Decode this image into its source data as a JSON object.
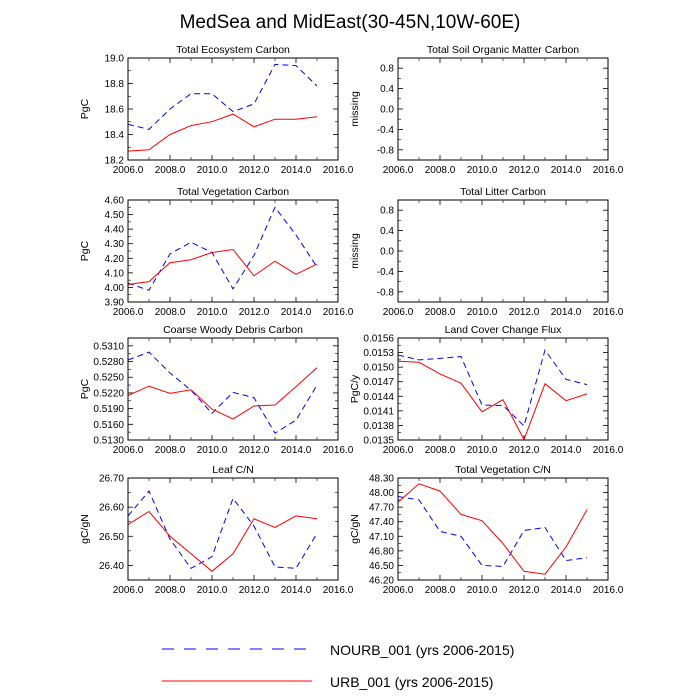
{
  "figure": {
    "title": "MedSea and MidEast(30-45N,10W-60E)"
  },
  "legend": {
    "entries": [
      {
        "label": "NOURB_001 (yrs 2006-2015)",
        "color": "#0000ff",
        "style": "dashed"
      },
      {
        "label": "URB_001 (yrs 2006-2015)",
        "color": "#ff0000",
        "style": "solid"
      }
    ]
  },
  "chart_data": [
    {
      "type": "line",
      "title": "Total Ecosystem Carbon",
      "ylabel": "PgC",
      "xlim": [
        2006,
        2016
      ],
      "ylim": [
        18.2,
        19.0
      ],
      "xticks": [
        "2006.0",
        "2008.0",
        "2010.0",
        "2012.0",
        "2014.0",
        "2016.0"
      ],
      "yticks": [
        "18.2",
        "18.4",
        "18.6",
        "18.8",
        "19.0"
      ],
      "x": [
        2006,
        2007,
        2008,
        2009,
        2010,
        2011,
        2012,
        2013,
        2014,
        2015
      ],
      "series": [
        {
          "name": "NOURB_001 (yrs 2006-2015)",
          "values": [
            18.48,
            18.44,
            18.6,
            18.72,
            18.72,
            18.58,
            18.64,
            18.95,
            18.94,
            18.78
          ]
        },
        {
          "name": "URB_001 (yrs 2006-2015)",
          "values": [
            18.27,
            18.28,
            18.4,
            18.47,
            18.5,
            18.56,
            18.46,
            18.52,
            18.52,
            18.54
          ]
        }
      ]
    },
    {
      "type": "line",
      "title": "Total Soil Organic Matter Carbon",
      "ylabel": "missing",
      "xlim": [
        2006,
        2016
      ],
      "ylim": [
        -1.0,
        1.0
      ],
      "xticks": [
        "2006.0",
        "2008.0",
        "2010.0",
        "2012.0",
        "2014.0",
        "2016.0"
      ],
      "yticks": [
        "-0.8",
        "-0.4",
        "0.0",
        "0.4",
        "0.8"
      ],
      "x": [],
      "series": []
    },
    {
      "type": "line",
      "title": "Total Vegetation Carbon",
      "ylabel": "PgC",
      "xlim": [
        2006,
        2016
      ],
      "ylim": [
        3.9,
        4.6
      ],
      "xticks": [
        "2006.0",
        "2008.0",
        "2010.0",
        "2012.0",
        "2014.0",
        "2016.0"
      ],
      "yticks": [
        "3.90",
        "4.00",
        "4.10",
        "4.20",
        "4.30",
        "4.40",
        "4.50",
        "4.60"
      ],
      "x": [
        2006,
        2007,
        2008,
        2009,
        2010,
        2011,
        2012,
        2013,
        2014,
        2015
      ],
      "series": [
        {
          "name": "NOURB_001 (yrs 2006-2015)",
          "values": [
            4.03,
            3.98,
            4.23,
            4.31,
            4.24,
            3.99,
            4.22,
            4.55,
            4.36,
            4.14
          ]
        },
        {
          "name": "URB_001 (yrs 2006-2015)",
          "values": [
            4.02,
            4.04,
            4.17,
            4.19,
            4.24,
            4.26,
            4.08,
            4.18,
            4.09,
            4.16
          ]
        }
      ]
    },
    {
      "type": "line",
      "title": "Total Litter Carbon",
      "ylabel": "missing",
      "xlim": [
        2006,
        2016
      ],
      "ylim": [
        -1.0,
        1.0
      ],
      "xticks": [
        "2006.0",
        "2008.0",
        "2010.0",
        "2012.0",
        "2014.0",
        "2016.0"
      ],
      "yticks": [
        "-0.8",
        "-0.4",
        "0.0",
        "0.4",
        "0.8"
      ],
      "x": [],
      "series": []
    },
    {
      "type": "line",
      "title": "Coarse Woody Debris Carbon",
      "ylabel": "PgC",
      "xlim": [
        2006,
        2016
      ],
      "ylim": [
        0.513,
        0.5325
      ],
      "xticks": [
        "2006.0",
        "2008.0",
        "2010.0",
        "2012.0",
        "2014.0",
        "2016.0"
      ],
      "yticks": [
        "0.5130",
        "0.5160",
        "0.5190",
        "0.5220",
        "0.5250",
        "0.5280",
        "0.5310"
      ],
      "x": [
        2006,
        2007,
        2008,
        2009,
        2010,
        2011,
        2012,
        2013,
        2014,
        2015
      ],
      "series": [
        {
          "name": "NOURB_001 (yrs 2006-2015)",
          "values": [
            0.5283,
            0.5298,
            0.5258,
            0.5225,
            0.5181,
            0.5221,
            0.5211,
            0.5143,
            0.5168,
            0.5235
          ]
        },
        {
          "name": "URB_001 (yrs 2006-2015)",
          "values": [
            0.5215,
            0.5233,
            0.5219,
            0.5226,
            0.5189,
            0.517,
            0.5195,
            0.5197,
            0.5232,
            0.5268
          ]
        }
      ]
    },
    {
      "type": "line",
      "title": "Land Cover Change Flux",
      "ylabel": "PgC/y",
      "xlim": [
        2006,
        2016
      ],
      "ylim": [
        0.0135,
        0.0156
      ],
      "xticks": [
        "2006.0",
        "2008.0",
        "2010.0",
        "2012.0",
        "2014.0",
        "2016.0"
      ],
      "yticks": [
        "0.0135",
        "0.0138",
        "0.0141",
        "0.0144",
        "0.0147",
        "0.0150",
        "0.0153",
        "0.0156"
      ],
      "x": [
        2006,
        2007,
        2008,
        2009,
        2010,
        2011,
        2012,
        2013,
        2014,
        2015
      ],
      "series": [
        {
          "name": "NOURB_001 (yrs 2006-2015)",
          "values": [
            0.01525,
            0.01515,
            0.01518,
            0.01522,
            0.01422,
            0.01421,
            0.01379,
            0.01535,
            0.01475,
            0.01464
          ]
        },
        {
          "name": "URB_001 (yrs 2006-2015)",
          "values": [
            0.01512,
            0.0151,
            0.01486,
            0.01467,
            0.01408,
            0.01433,
            0.01351,
            0.01466,
            0.01431,
            0.01445
          ]
        }
      ]
    },
    {
      "type": "line",
      "title": "Leaf C/N",
      "ylabel": "gC/gN",
      "xlim": [
        2006,
        2016
      ],
      "ylim": [
        26.35,
        26.7
      ],
      "xticks": [
        "2006.0",
        "2008.0",
        "2010.0",
        "2012.0",
        "2014.0",
        "2016.0"
      ],
      "yticks": [
        "26.40",
        "26.50",
        "26.60",
        "26.70"
      ],
      "x": [
        2006,
        2007,
        2008,
        2009,
        2010,
        2011,
        2012,
        2013,
        2014,
        2015
      ],
      "series": [
        {
          "name": "NOURB_001 (yrs 2006-2015)",
          "values": [
            26.57,
            26.655,
            26.49,
            26.39,
            26.43,
            26.63,
            26.535,
            26.395,
            26.39,
            26.51
          ]
        },
        {
          "name": "URB_001 (yrs 2006-2015)",
          "values": [
            26.54,
            26.585,
            26.5,
            26.44,
            26.38,
            26.44,
            26.56,
            26.53,
            26.57,
            26.56
          ]
        }
      ]
    },
    {
      "type": "line",
      "title": "Total Vegetation C/N",
      "ylabel": "gC/gN",
      "xlim": [
        2006,
        2016
      ],
      "ylim": [
        46.2,
        48.3
      ],
      "xticks": [
        "2006.0",
        "2008.0",
        "2010.0",
        "2012.0",
        "2014.0",
        "2016.0"
      ],
      "yticks": [
        "46.20",
        "46.50",
        "46.80",
        "47.10",
        "47.40",
        "47.70",
        "48.00",
        "48.30"
      ],
      "x": [
        2006,
        2007,
        2008,
        2009,
        2010,
        2011,
        2012,
        2013,
        2014,
        2015
      ],
      "series": [
        {
          "name": "NOURB_001 (yrs 2006-2015)",
          "values": [
            47.92,
            47.85,
            47.2,
            47.1,
            46.5,
            46.48,
            47.22,
            47.28,
            46.6,
            46.66
          ]
        },
        {
          "name": "URB_001 (yrs 2006-2015)",
          "values": [
            47.8,
            48.18,
            48.03,
            47.55,
            47.42,
            46.95,
            46.38,
            46.32,
            46.88,
            47.65
          ]
        }
      ]
    }
  ]
}
